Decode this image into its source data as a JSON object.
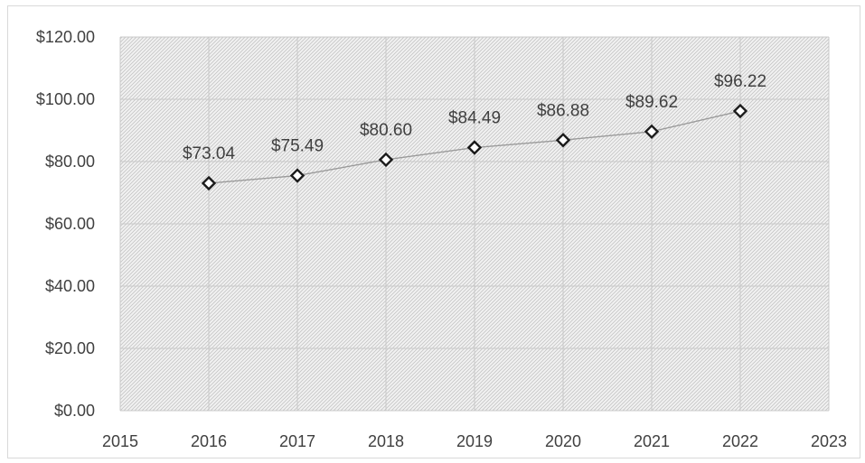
{
  "chart_data": {
    "type": "scatter",
    "x": [
      2016,
      2017,
      2018,
      2019,
      2020,
      2021,
      2022
    ],
    "y": [
      73.04,
      75.49,
      80.6,
      84.49,
      86.88,
      89.62,
      96.22
    ],
    "data_labels": [
      "$73.04",
      "$75.49",
      "$80.60",
      "$84.49",
      "$86.88",
      "$89.62",
      "$96.22"
    ],
    "xlim": [
      2015,
      2023
    ],
    "ylim": [
      0,
      120
    ],
    "x_ticks": [
      2015,
      2016,
      2017,
      2018,
      2019,
      2020,
      2021,
      2022,
      2023
    ],
    "x_tick_labels": [
      "2015",
      "2016",
      "2017",
      "2018",
      "2019",
      "2020",
      "2021",
      "2022",
      "2023"
    ],
    "y_ticks": [
      0,
      20,
      40,
      60,
      80,
      100,
      120
    ],
    "y_tick_labels": [
      "$0.00",
      "$20.00",
      "$40.00",
      "$60.00",
      "$80.00",
      "$100.00",
      "$120.00"
    ],
    "marker": "diamond",
    "connected": true,
    "grid": true,
    "legend": "none",
    "colors": {
      "line": "#9a9a9a",
      "marker_stroke": "#1a1a1a",
      "marker_fill": "#ffffff",
      "grid": "#c8c8c8",
      "plot_background": "#e9e9e9",
      "text": "#404040"
    }
  }
}
